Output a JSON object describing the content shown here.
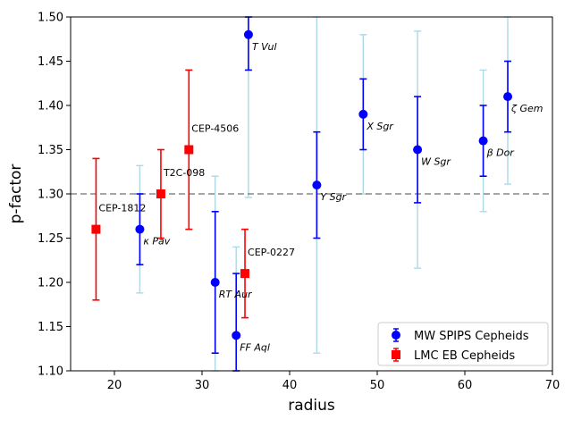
{
  "chart_data": {
    "type": "scatter",
    "xlabel": "radius",
    "ylabel": "p-factor",
    "xlim": [
      15,
      70
    ],
    "ylim": [
      1.1,
      1.5
    ],
    "xticks": [
      "20",
      "30",
      "40",
      "50",
      "60",
      "70"
    ],
    "yticks": [
      "1.10",
      "1.15",
      "1.20",
      "1.25",
      "1.30",
      "1.35",
      "1.40",
      "1.45",
      "1.50"
    ],
    "reference_line": 1.3,
    "legend": {
      "position": "lower-right",
      "entries": [
        {
          "label": "MW SPIPS Cepheids",
          "marker": "circle",
          "color": "#0000ff"
        },
        {
          "label": "LMC EB Cepheids",
          "marker": "square",
          "color": "#ff0000"
        }
      ]
    },
    "colors": {
      "mw": "#0000ff",
      "lmc": "#ff0000",
      "wide_err": "#add8e6",
      "ref_line": "#707070"
    },
    "series": [
      {
        "name": "MW SPIPS Cepheids",
        "points": [
          {
            "label": "κ Pav",
            "x": 22.9,
            "y": 1.26,
            "err_lo": 1.22,
            "err_hi": 1.3,
            "wide_lo": 1.188,
            "wide_hi": 1.332
          },
          {
            "label": "RT Aur",
            "x": 31.5,
            "y": 1.2,
            "err_lo": 1.12,
            "err_hi": 1.28,
            "wide_lo": 1.1,
            "wide_hi": 1.32
          },
          {
            "label": "FF Aql",
            "x": 33.9,
            "y": 1.14,
            "err_lo": 1.1,
            "err_hi": 1.21,
            "wide_lo": 1.1,
            "wide_hi": 1.24
          },
          {
            "label": "T Vul",
            "x": 35.3,
            "y": 1.48,
            "err_lo": 1.44,
            "err_hi": 1.5,
            "wide_lo": 1.296,
            "wide_hi": 1.5
          },
          {
            "label": "Y Sgr",
            "x": 43.1,
            "y": 1.31,
            "err_lo": 1.25,
            "err_hi": 1.37,
            "wide_lo": 1.12,
            "wide_hi": 1.5
          },
          {
            "label": "X Sgr",
            "x": 48.4,
            "y": 1.39,
            "err_lo": 1.35,
            "err_hi": 1.43,
            "wide_lo": 1.3,
            "wide_hi": 1.48
          },
          {
            "label": "W Sgr",
            "x": 54.6,
            "y": 1.35,
            "err_lo": 1.29,
            "err_hi": 1.41,
            "wide_lo": 1.216,
            "wide_hi": 1.484
          },
          {
            "label": "β Dor",
            "x": 62.1,
            "y": 1.36,
            "err_lo": 1.32,
            "err_hi": 1.4,
            "wide_lo": 1.28,
            "wide_hi": 1.44
          },
          {
            "label": "ζ Gem",
            "x": 64.9,
            "y": 1.41,
            "err_lo": 1.37,
            "err_hi": 1.45,
            "wide_lo": 1.311,
            "wide_hi": 1.5
          }
        ]
      },
      {
        "name": "LMC EB Cepheids",
        "points": [
          {
            "label": "CEP-1812",
            "x": 17.9,
            "y": 1.26,
            "err_lo": 1.18,
            "err_hi": 1.34
          },
          {
            "label": "T2C-098",
            "x": 25.3,
            "y": 1.3,
            "err_lo": 1.25,
            "err_hi": 1.35
          },
          {
            "label": "CEP-4506",
            "x": 28.5,
            "y": 1.35,
            "err_lo": 1.26,
            "err_hi": 1.44
          },
          {
            "label": "CEP-0227",
            "x": 34.9,
            "y": 1.21,
            "err_lo": 1.16,
            "err_hi": 1.26
          }
        ]
      }
    ]
  }
}
